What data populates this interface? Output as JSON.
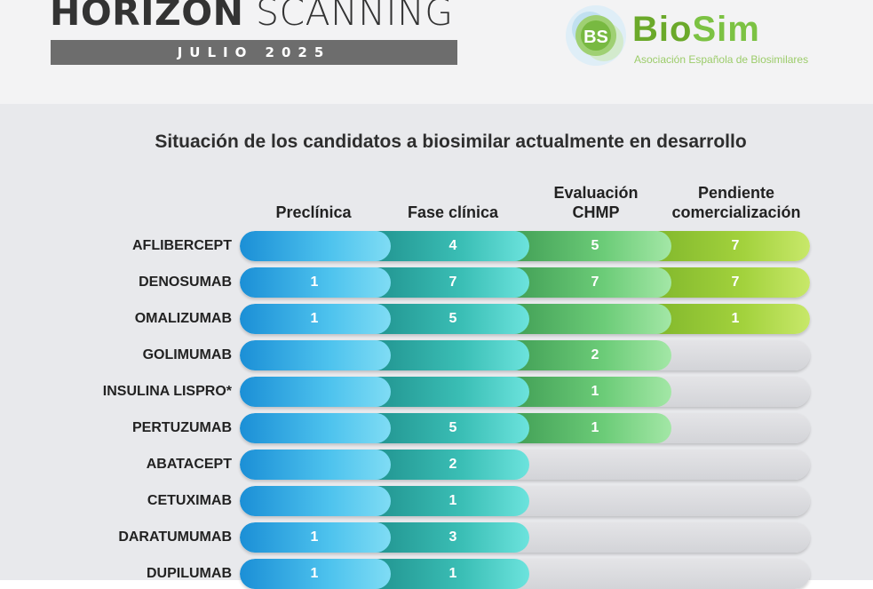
{
  "header": {
    "title_bold": "HORIZON",
    "title_light": "SCANNING",
    "subtitle": "JULIO 2025",
    "logo_badge": "BS",
    "logo_name_1": "Bio",
    "logo_name_2": "Sim",
    "logo_tagline": "Asociación Española de Biosimilares"
  },
  "chart_data": {
    "type": "table",
    "title": "Situación de los candidatos a biosimilar actualmente en desarrollo",
    "columns": [
      "Preclínica",
      "Fase clínica",
      "Evaluación CHMP",
      "Pendiente comercialización"
    ],
    "columns_lines": [
      [
        "Preclínica"
      ],
      [
        "Fase clínica"
      ],
      [
        "Evaluación",
        "CHMP"
      ],
      [
        "Pendiente",
        "comercialización"
      ]
    ],
    "rows": [
      {
        "name": "AFLIBERCEPT",
        "stages_reached": 4,
        "values": [
          "",
          "4",
          "5",
          "7"
        ]
      },
      {
        "name": "DENOSUMAB",
        "stages_reached": 4,
        "values": [
          "1",
          "7",
          "7",
          "7"
        ]
      },
      {
        "name": "OMALIZUMAB",
        "stages_reached": 4,
        "values": [
          "1",
          "5",
          "",
          "1"
        ]
      },
      {
        "name": "GOLIMUMAB",
        "stages_reached": 3,
        "values": [
          "",
          "",
          "2",
          ""
        ]
      },
      {
        "name": "INSULINA LISPRO*",
        "stages_reached": 3,
        "values": [
          "",
          "",
          "1",
          ""
        ]
      },
      {
        "name": "PERTUZUMAB",
        "stages_reached": 3,
        "values": [
          "",
          "5",
          "1",
          ""
        ]
      },
      {
        "name": "ABATACEPT",
        "stages_reached": 2,
        "values": [
          "",
          "2",
          "",
          ""
        ]
      },
      {
        "name": "CETUXIMAB",
        "stages_reached": 2,
        "values": [
          "",
          "1",
          "",
          ""
        ]
      },
      {
        "name": "DARATUMUMAB",
        "stages_reached": 2,
        "values": [
          "1",
          "3",
          "",
          ""
        ]
      },
      {
        "name": "DUPILUMAB",
        "stages_reached": 2,
        "values": [
          "1",
          "1",
          "",
          ""
        ]
      }
    ],
    "colors": {
      "preclinica": "#1b8fd6",
      "fase_clinica": "#3bbfb6",
      "evaluacion": "#6ccc78",
      "pendiente": "#a3d23d",
      "empty": "#dcdde0"
    }
  }
}
